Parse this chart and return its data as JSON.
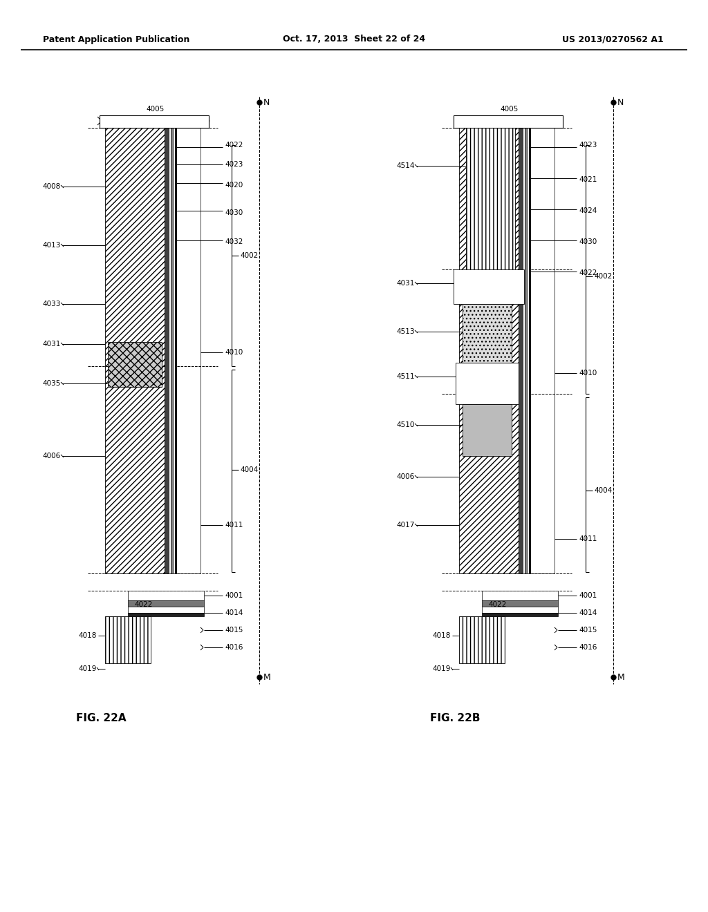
{
  "title_left": "Patent Application Publication",
  "title_center": "Oct. 17, 2013  Sheet 22 of 24",
  "title_right": "US 2013/0270562 A1",
  "fig_a_label": "FIG. 22A",
  "fig_b_label": "FIG. 22B",
  "background_color": "#ffffff",
  "line_color": "#000000"
}
